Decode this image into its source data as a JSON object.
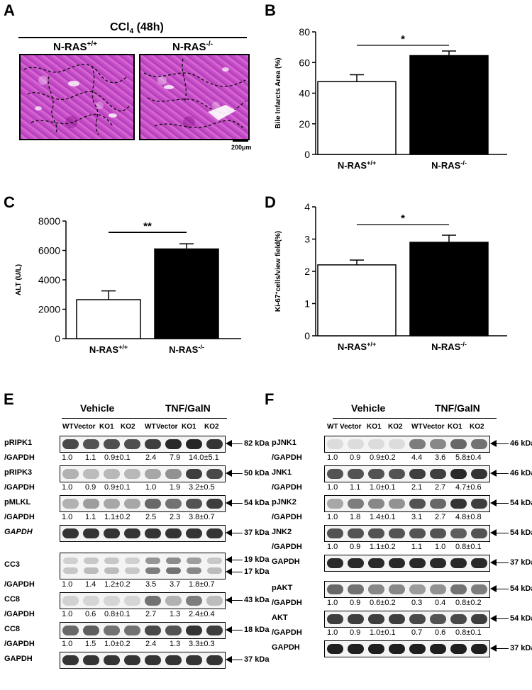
{
  "panels": {
    "A": "A",
    "B": "B",
    "C": "C",
    "D": "D",
    "E": "E",
    "F": "F"
  },
  "panel_a": {
    "title": "CCl",
    "title_sub": "4",
    "title_rest": " (48h)",
    "label_left": "N-RAS",
    "label_left_sup": "+/+",
    "label_right": "N-RAS",
    "label_right_sup": "-/-",
    "scale_bar": "200μm"
  },
  "chart_data": [
    {
      "panel": "B",
      "type": "bar",
      "categories": [
        "N-RAS+/+",
        "N-RAS-/-"
      ],
      "category_base": [
        "N-RAS",
        "N-RAS"
      ],
      "category_sup": [
        "+/+",
        "-/-"
      ],
      "values": [
        47.5,
        64.5
      ],
      "errors": [
        4.5,
        3.0
      ],
      "ylabel": "Bile Infarcts Area (%)",
      "ylim": [
        0,
        80
      ],
      "yticks": [
        "0",
        "20",
        "40",
        "60",
        "80"
      ],
      "significance": "*",
      "bar_colors": [
        "#ffffff",
        "#000000"
      ]
    },
    {
      "panel": "C",
      "type": "bar",
      "categories": [
        "N-RAS+/+",
        "N-RAS-/-"
      ],
      "category_base": [
        "N-RAS",
        "N-RAS"
      ],
      "category_sup": [
        "+/+",
        "-/-"
      ],
      "values": [
        2650,
        6100
      ],
      "errors": [
        600,
        350
      ],
      "ylabel": "ALT (U/L)",
      "ylim": [
        0,
        8000
      ],
      "yticks": [
        "0",
        "2000",
        "4000",
        "6000",
        "8000"
      ],
      "significance": "**",
      "bar_colors": [
        "#ffffff",
        "#000000"
      ]
    },
    {
      "panel": "D",
      "type": "bar",
      "categories": [
        "N-RAS+/+",
        "N-RAS-/-"
      ],
      "category_base": [
        "N-RAS",
        "N-RAS"
      ],
      "category_sup": [
        "+/+",
        "-/-"
      ],
      "values": [
        2.2,
        2.9
      ],
      "errors": [
        0.15,
        0.22
      ],
      "ylabel_pre": "Ki-67",
      "ylabel_sup": "+",
      "ylabel_post": "cells/view field(%)",
      "ylim": [
        0,
        4
      ],
      "yticks": [
        "0",
        "1",
        "2",
        "3",
        "4"
      ],
      "significance": "*",
      "bar_colors": [
        "#ffffff",
        "#000000"
      ]
    }
  ],
  "panel_e": {
    "groups": [
      "Vehicle",
      "TNF/GalN"
    ],
    "lanes": [
      "WT",
      "Vector",
      "KO1",
      "KO2",
      "WT",
      "Vector",
      "KO1",
      "KO2"
    ],
    "blots": [
      {
        "protein": "pRIPK1",
        "italic": false,
        "kda": [
          "82 kDa"
        ],
        "ratio_label": "/GAPDH",
        "ratios": [
          "1.0",
          "1.1",
          "0.9±0.1",
          "2.4",
          "7.9",
          "14.0±5.1"
        ],
        "intensity": [
          0.75,
          0.7,
          0.72,
          0.72,
          0.8,
          0.9,
          0.92,
          0.85
        ]
      },
      {
        "protein": "pRIPK3",
        "italic": false,
        "kda": [
          "50 kDa"
        ],
        "ratio_label": "/GAPDH",
        "ratios": [
          "1.0",
          "0.9",
          "0.9±0.1",
          "1.0",
          "1.9",
          "3.2±0.5"
        ],
        "intensity": [
          0.25,
          0.2,
          0.22,
          0.22,
          0.3,
          0.4,
          0.8,
          0.75
        ]
      },
      {
        "protein": "pMLKL",
        "italic": false,
        "kda": [
          "54 kDa"
        ],
        "ratio_label": "/GAPDH",
        "ratios": [
          "1.0",
          "1.1",
          "1.1±0.2",
          "2.5",
          "2.3",
          "3.8±0.7"
        ],
        "intensity": [
          0.25,
          0.35,
          0.3,
          0.3,
          0.6,
          0.55,
          0.7,
          0.8
        ]
      },
      {
        "protein": "GAPDH",
        "italic": true,
        "kda": [
          "37 kDa"
        ],
        "ratio_label": "",
        "ratios": [],
        "intensity": [
          0.85,
          0.85,
          0.85,
          0.85,
          0.85,
          0.85,
          0.85,
          0.85
        ]
      },
      {
        "protein": "CC3",
        "italic": false,
        "kda": [
          "19 kDa",
          "17 kDa"
        ],
        "ratio_label": "/GAPDH",
        "ratios": [
          "1.0",
          "1.4",
          "1.2±0.2",
          "3.5",
          "3.7",
          "1.8±0.7"
        ],
        "intensity": [
          0.15,
          0.2,
          0.2,
          0.15,
          0.5,
          0.55,
          0.45,
          0.2
        ]
      },
      {
        "protein": "CC8",
        "italic": false,
        "kda": [
          "43 kDa"
        ],
        "ratio_label": "/GAPDH",
        "ratios": [
          "1.0",
          "0.6",
          "0.8±0.1",
          "2.7",
          "1.3",
          "2.4±0.4"
        ],
        "intensity": [
          0.1,
          0.08,
          0.08,
          0.08,
          0.55,
          0.25,
          0.5,
          0.2
        ]
      },
      {
        "protein": "CC8",
        "italic": false,
        "kda": [
          "18 kDa"
        ],
        "ratio_label": "/GAPDH",
        "ratios": [
          "1.0",
          "1.5",
          "1.0±0.2",
          "2.4",
          "1.3",
          "3.3±0.3"
        ],
        "intensity": [
          0.6,
          0.65,
          0.55,
          0.55,
          0.75,
          0.7,
          0.85,
          0.8
        ]
      },
      {
        "protein": "GAPDH",
        "italic": false,
        "kda": [
          "37 kDa"
        ],
        "ratio_label": "",
        "ratios": [],
        "intensity": [
          0.85,
          0.85,
          0.85,
          0.85,
          0.85,
          0.85,
          0.85,
          0.85
        ]
      }
    ]
  },
  "panel_f": {
    "groups": [
      "Vehicle",
      "TNF/GalN"
    ],
    "lanes": [
      "WT",
      "Vector",
      "KO1",
      "KO2",
      "WT",
      "Vector",
      "KO1",
      "KO2"
    ],
    "blots": [
      {
        "protein": "pJNK1",
        "kda": [
          "46 kDa"
        ],
        "ratio_label": "/GAPDH",
        "ratios": [
          "1.0",
          "0.9",
          "0.9±0.2",
          "4.4",
          "3.6",
          "5.8±0.4"
        ],
        "intensity": [
          0.05,
          0.05,
          0.05,
          0.05,
          0.5,
          0.45,
          0.6,
          0.55
        ]
      },
      {
        "protein": "JNK1",
        "kda": [
          "46 kDa"
        ],
        "ratio_label": "/GAPDH",
        "ratios": [
          "1.0",
          "1.1",
          "1.0±0.1",
          "2.1",
          "2.7",
          "4.7±0.6"
        ],
        "intensity": [
          0.7,
          0.7,
          0.7,
          0.7,
          0.8,
          0.8,
          0.9,
          0.85
        ]
      },
      {
        "protein": "pJNK2",
        "kda": [
          "54 kDa"
        ],
        "ratio_label": "/GAPDH",
        "ratios": [
          "1.0",
          "1.8",
          "1.4±0.1",
          "3.1",
          "2.7",
          "4.8±0.8"
        ],
        "intensity": [
          0.3,
          0.5,
          0.45,
          0.4,
          0.7,
          0.6,
          0.85,
          0.8
        ]
      },
      {
        "protein": "JNK2",
        "kda": [
          "54 kDa"
        ],
        "ratio_label": "/GAPDH",
        "ratios": [
          "1.0",
          "0.9",
          "1.1±0.2",
          "1.1",
          "1.0",
          "0.8±0.1"
        ],
        "intensity": [
          0.7,
          0.7,
          0.7,
          0.7,
          0.7,
          0.7,
          0.65,
          0.7
        ]
      },
      {
        "protein": "GAPDH",
        "kda": [
          "37 kDa"
        ],
        "ratio_label": "",
        "ratios": [],
        "intensity": [
          0.9,
          0.9,
          0.9,
          0.9,
          0.9,
          0.9,
          0.9,
          0.9
        ]
      },
      {
        "protein": "pAKT",
        "kda": [
          "54 kDa"
        ],
        "ratio_label": "/GAPDH",
        "ratios": [
          "1.0",
          "0.9",
          "0.6±0.2",
          "0.3",
          "0.4",
          "0.8±0.2"
        ],
        "intensity": [
          0.6,
          0.55,
          0.45,
          0.45,
          0.35,
          0.4,
          0.55,
          0.5
        ]
      },
      {
        "protein": "AKT",
        "kda": [
          "54 kDa"
        ],
        "ratio_label": "/GAPDH",
        "ratios": [
          "1.0",
          "0.9",
          "1.0±0.1",
          "0.7",
          "0.6",
          "0.8±0.1"
        ],
        "intensity": [
          0.8,
          0.8,
          0.8,
          0.8,
          0.75,
          0.7,
          0.75,
          0.8
        ]
      },
      {
        "protein": "GAPDH",
        "kda": [
          "37 kDa"
        ],
        "ratio_label": "",
        "ratios": [],
        "intensity": [
          0.95,
          0.95,
          0.95,
          0.95,
          0.95,
          0.95,
          0.95,
          0.95
        ]
      }
    ]
  }
}
